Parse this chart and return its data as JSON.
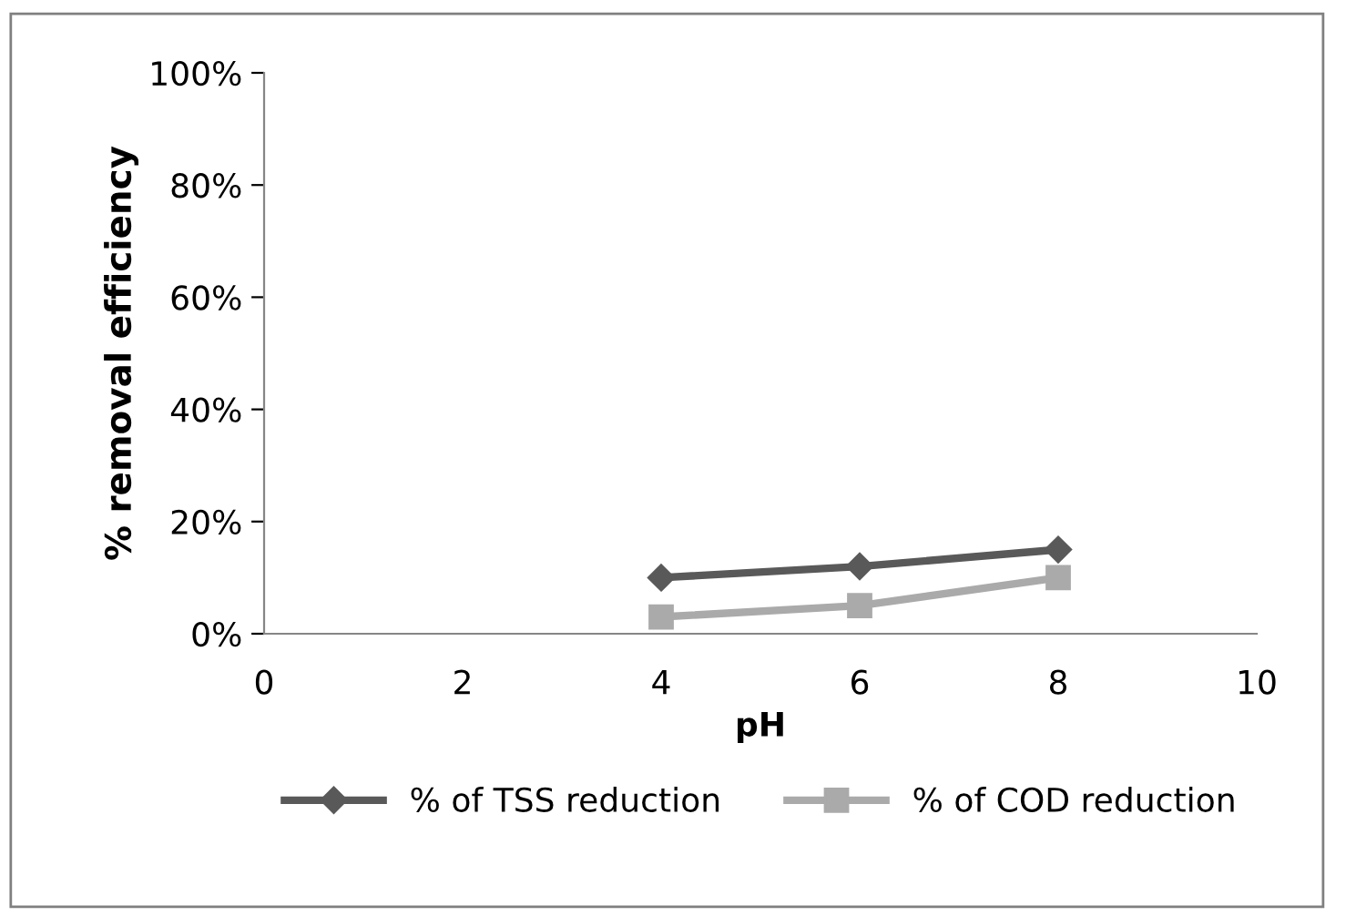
{
  "chart_data": {
    "type": "line",
    "xlabel": "pH",
    "ylabel": "% removal efficiency",
    "series": [
      {
        "name": "% of TSS reduction",
        "color": "#595959",
        "marker": "diamond",
        "x": [
          4,
          6,
          8
        ],
        "values": [
          10,
          12,
          15
        ]
      },
      {
        "name": "% of COD reduction",
        "color": "#aaaaaa",
        "marker": "square",
        "x": [
          4,
          6,
          8
        ],
        "values": [
          3,
          5,
          10
        ]
      }
    ],
    "xlim": [
      0,
      10
    ],
    "xticks": [
      0,
      2,
      4,
      6,
      8,
      10
    ],
    "ylim": [
      0,
      100
    ],
    "yticks": [
      {
        "value": 0,
        "label": "0%"
      },
      {
        "value": 20,
        "label": "20%"
      },
      {
        "value": 40,
        "label": "40%"
      },
      {
        "value": 60,
        "label": "60%"
      },
      {
        "value": 80,
        "label": "80%"
      },
      {
        "value": 100,
        "label": "100%"
      }
    ],
    "grid": false,
    "legend": "bottom",
    "line_style": "solid"
  }
}
